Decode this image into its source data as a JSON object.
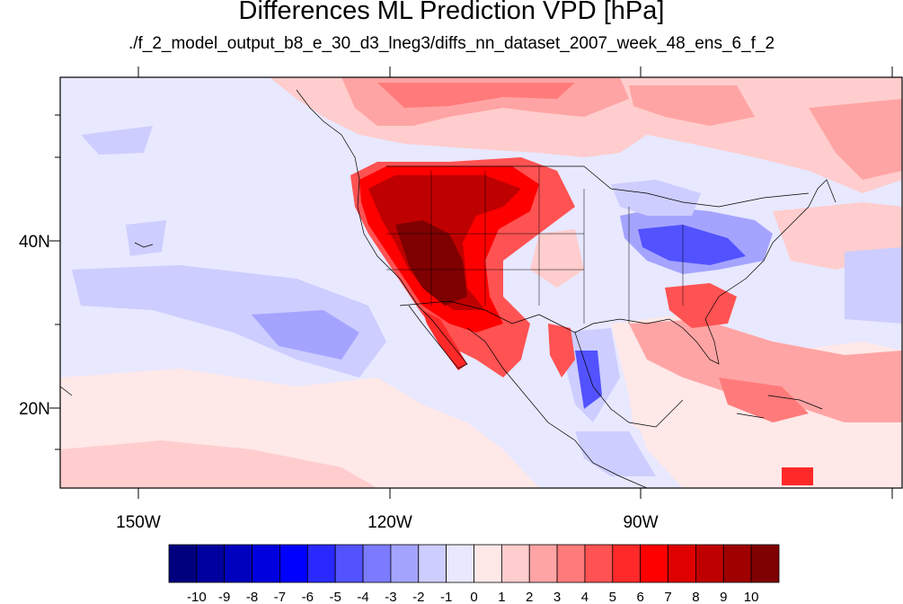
{
  "title": "Differences ML Prediction VPD [hPa]",
  "subtitle": "./f_2_model_output_b8_e_30_d3_lneg3/diffs_nn_dataset_2007_week_48_ens_6_f_2",
  "lat_labels": [
    "40N",
    "20N"
  ],
  "lon_labels": [
    "150W",
    "120W",
    "90W"
  ],
  "colorbar": {
    "labels": [
      "-10",
      "-9",
      "-8",
      "-7",
      "-6",
      "-5",
      "-4",
      "-3",
      "-2",
      "-1",
      "0",
      "1",
      "2",
      "3",
      "4",
      "5",
      "6",
      "7",
      "8",
      "9",
      "10"
    ],
    "colors": [
      "#00007f",
      "#00009f",
      "#0000bf",
      "#0000df",
      "#0000ff",
      "#2929ff",
      "#5252ff",
      "#7b7bff",
      "#a4a4ff",
      "#cdcdff",
      "#e8e8ff",
      "#ffe8e8",
      "#ffcdcd",
      "#ffa4a4",
      "#ff7b7b",
      "#ff5252",
      "#ff2929",
      "#ff0000",
      "#df0000",
      "#bf0000",
      "#9f0000",
      "#7f0000"
    ]
  },
  "colors": {
    "background_low": "#e8e8ff",
    "light_red": "#ffcdcd",
    "border": "#000000"
  }
}
